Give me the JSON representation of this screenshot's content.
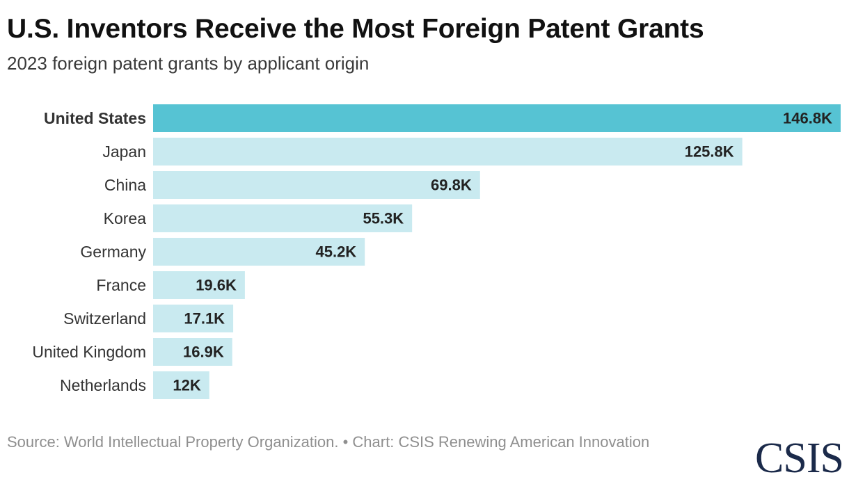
{
  "title": "U.S. Inventors Receive the Most Foreign Patent Grants",
  "subtitle": "2023 foreign patent grants by applicant origin",
  "footer": {
    "source": "Source: World Intellectual Property Organization. • Chart: CSIS Renewing American Innovation"
  },
  "logo": "CSIS",
  "colors": {
    "highlight": "#56c3d3",
    "bar": "#c9eaf0",
    "value_label": "#222222",
    "category_label": "#333333"
  },
  "chart_data": {
    "type": "bar",
    "orientation": "horizontal",
    "title": "U.S. Inventors Receive the Most Foreign Patent Grants",
    "subtitle": "2023 foreign patent grants by applicant origin",
    "xlabel": "",
    "ylabel": "",
    "xlim": [
      0,
      146.8
    ],
    "unit": "thousand grants",
    "highlight_category": "United States",
    "categories": [
      "United States",
      "Japan",
      "China",
      "Korea",
      "Germany",
      "France",
      "Switzerland",
      "United Kingdom",
      "Netherlands"
    ],
    "values": [
      146.8,
      125.8,
      69.8,
      55.3,
      45.2,
      19.6,
      17.1,
      16.9,
      12
    ],
    "labels": [
      "146.8K",
      "125.8K",
      "69.8K",
      "55.3K",
      "45.2K",
      "19.6K",
      "17.1K",
      "16.9K",
      "12K"
    ]
  }
}
